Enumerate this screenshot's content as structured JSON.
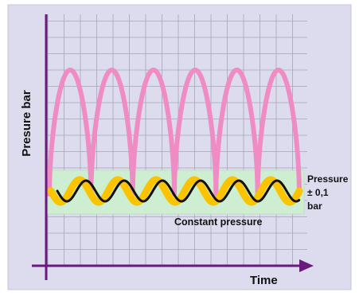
{
  "diagram": {
    "y_axis_label": "Presure bar",
    "x_axis_label": "Time",
    "band_label": "Constant pressure",
    "tolerance_label": {
      "line1": "Pressure",
      "line2": "± 0,1",
      "line3": "bar"
    },
    "colors": {
      "frame_background": "#dcdcee",
      "grid": "#a6a6b5",
      "axis": "#6a1a7a",
      "pulse_wave": "#f08cc4",
      "band_fill": "#cdeed0",
      "band_edge": "#c0e0c4",
      "constant_wave_outer": "#fbc300",
      "constant_wave_inner": "#111111"
    },
    "pulse_count": 6,
    "constant_wave_cycles": 6.5
  }
}
